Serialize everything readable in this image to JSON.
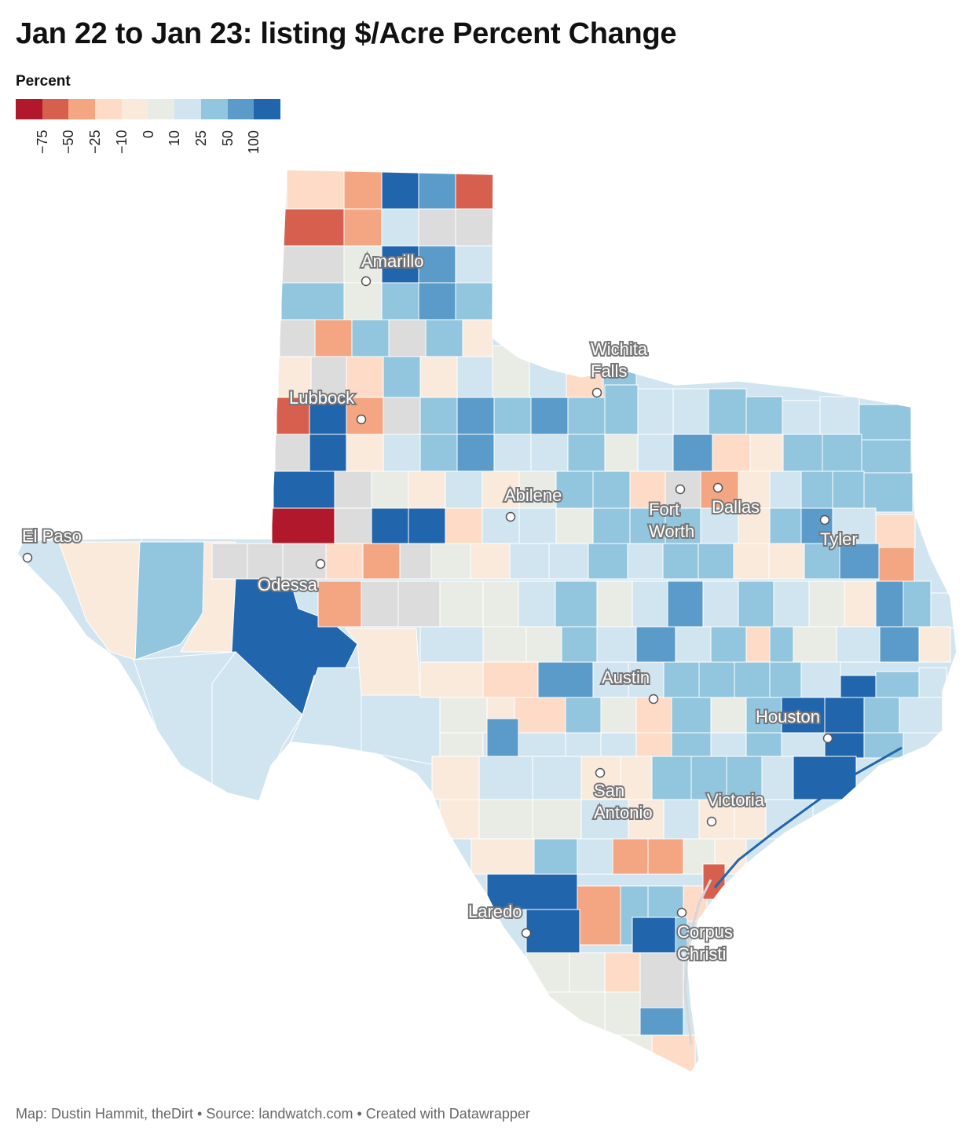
{
  "title": "Jan 22 to Jan 23: listing $/Acre Percent Change",
  "legend": {
    "title": "Percent",
    "colors": [
      "#b2182b",
      "#d6604d",
      "#f4a582",
      "#fddbc7",
      "#faeadc",
      "#e9ece5",
      "#d1e5f0",
      "#92c5de",
      "#5a9bc9",
      "#2166ac"
    ],
    "ticks": [
      "−75",
      "−50",
      "−25",
      "−10",
      "0",
      "10",
      "25",
      "50",
      "100"
    ]
  },
  "no_data_color": "#dcdcdc",
  "cities": [
    {
      "name": "Amarillo",
      "lines": [
        "Amarillo"
      ]
    },
    {
      "name": "Wichita Falls",
      "lines": [
        "Wichita",
        "Falls"
      ]
    },
    {
      "name": "Lubbock",
      "lines": [
        "Lubbock"
      ]
    },
    {
      "name": "Abilene",
      "lines": [
        "Abilene"
      ]
    },
    {
      "name": "Fort Worth",
      "lines": [
        "Fort",
        "Worth"
      ]
    },
    {
      "name": "Dallas",
      "lines": [
        "Dallas"
      ]
    },
    {
      "name": "Tyler",
      "lines": [
        "Tyler"
      ]
    },
    {
      "name": "El Paso",
      "lines": [
        "El Paso"
      ]
    },
    {
      "name": "Odessa",
      "lines": [
        "Odessa"
      ]
    },
    {
      "name": "Austin",
      "lines": [
        "Austin"
      ]
    },
    {
      "name": "Houston",
      "lines": [
        "Houston"
      ]
    },
    {
      "name": "San Antonio",
      "lines": [
        "San",
        "Antonio"
      ]
    },
    {
      "name": "Victoria",
      "lines": [
        "Victoria"
      ]
    },
    {
      "name": "Laredo",
      "lines": [
        "Laredo"
      ]
    },
    {
      "name": "Corpus Christi",
      "lines": [
        "Corpus",
        "Christi"
      ]
    }
  ],
  "footer": "Map: Dustin Hammit, theDirt • Source: landwatch.com • Created with Datawrapper"
}
